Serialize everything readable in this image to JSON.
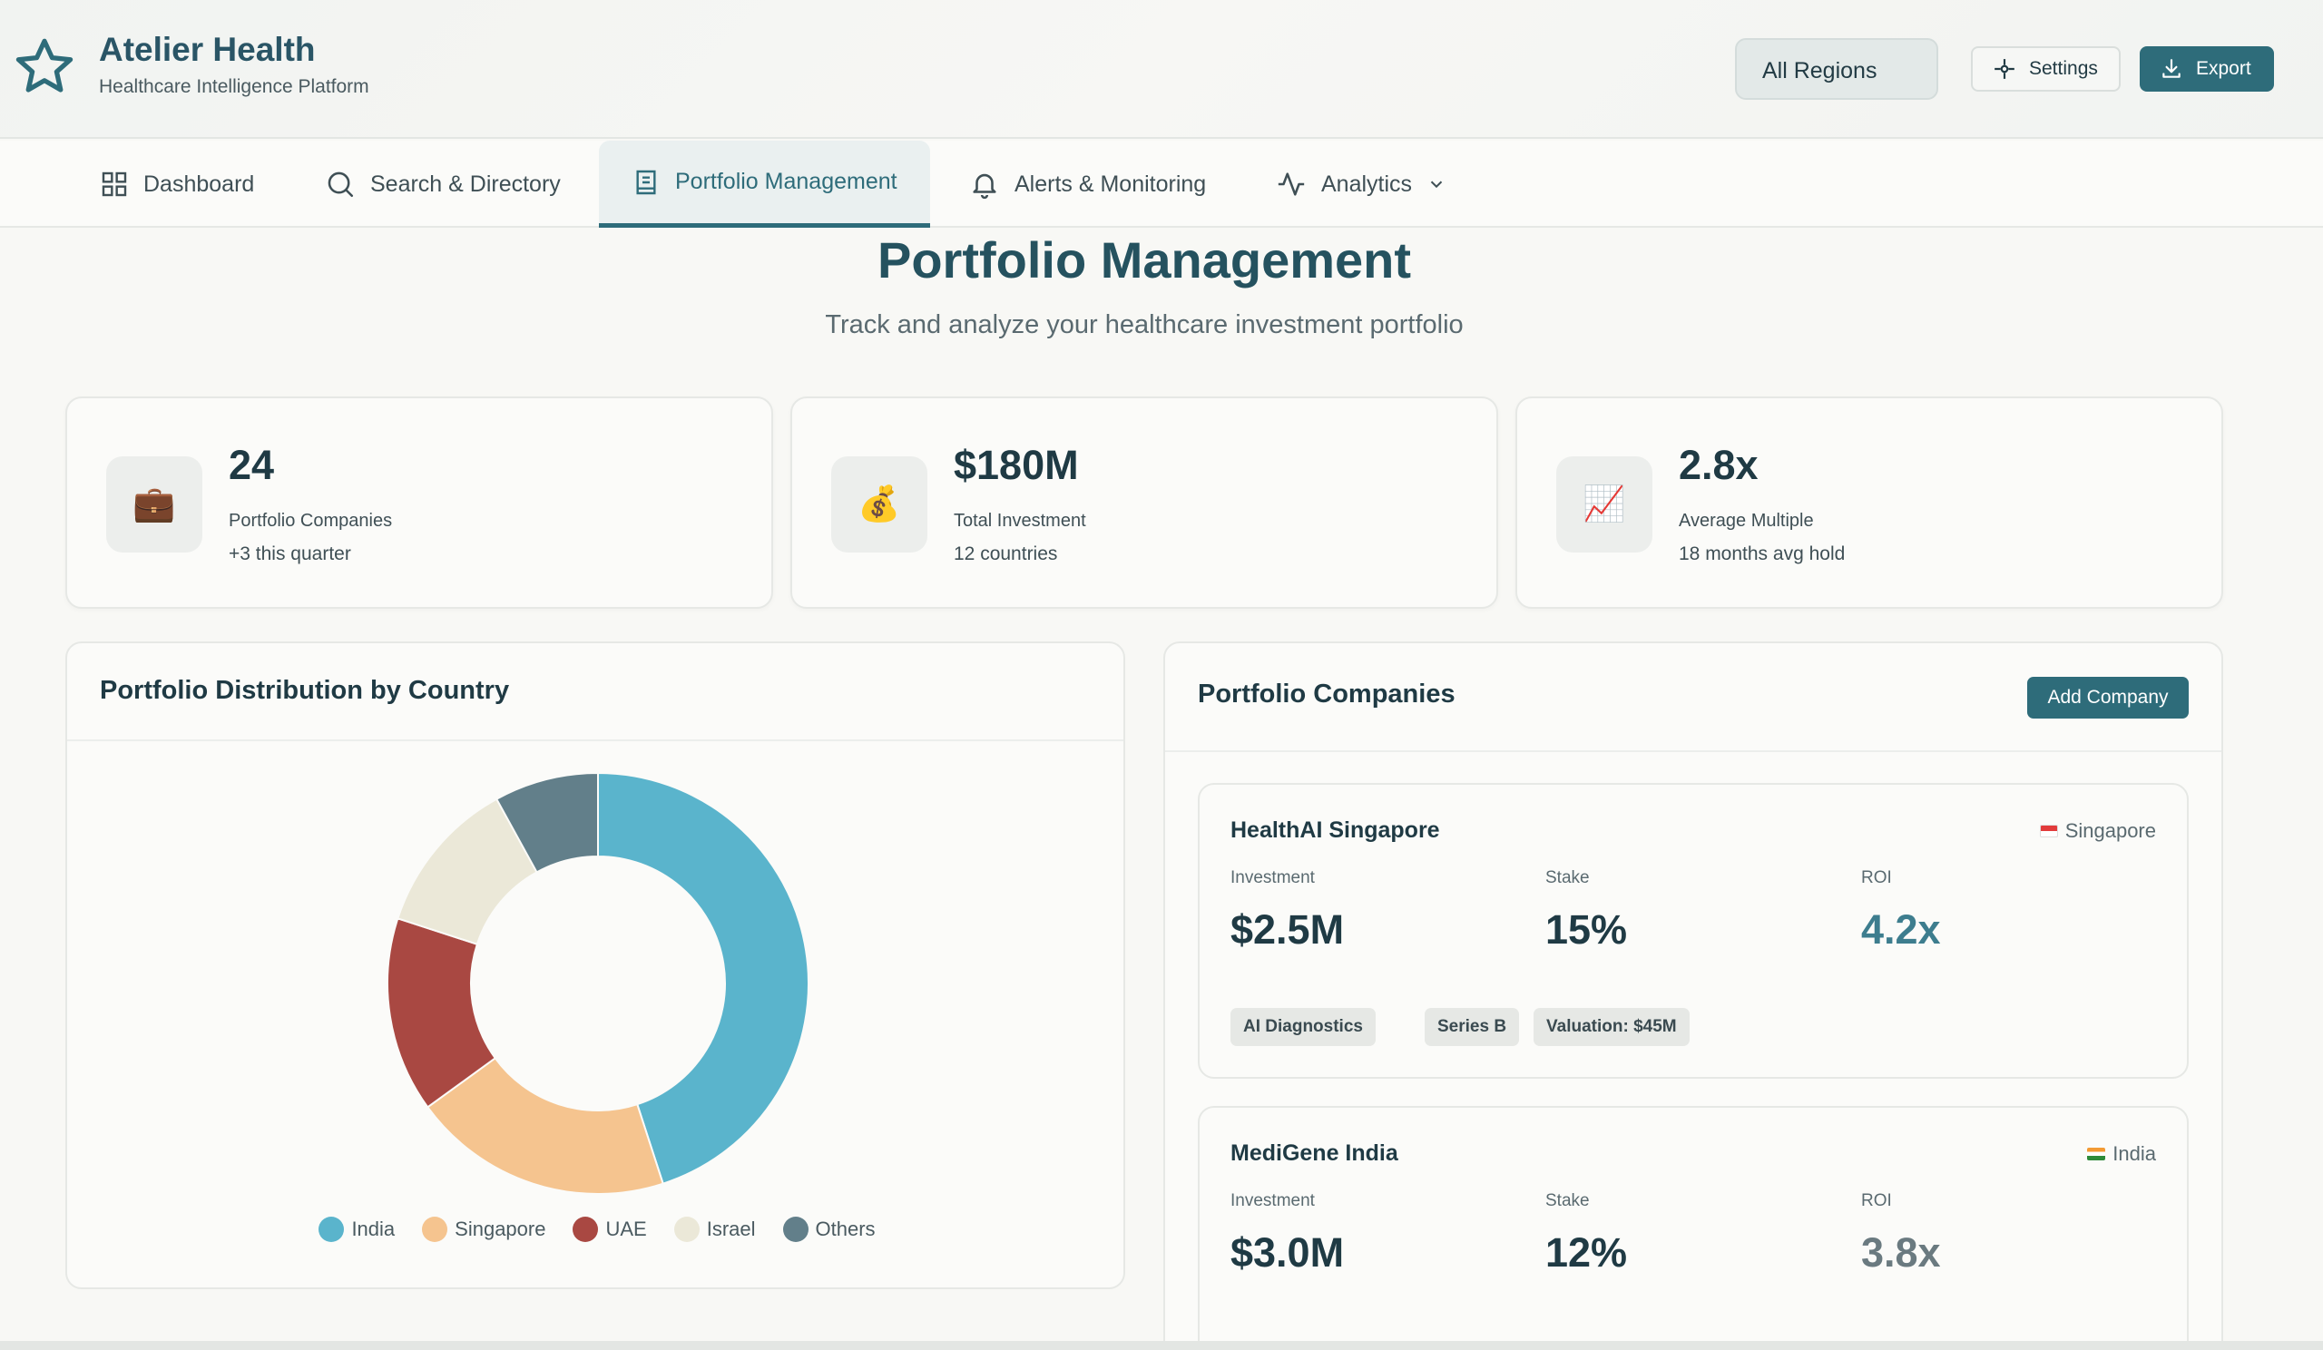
{
  "header": {
    "brand_title": "Atelier Health",
    "brand_subtitle": "Healthcare Intelligence Platform",
    "region_select": "All Regions",
    "settings_label": "Settings",
    "export_label": "Export"
  },
  "nav": {
    "items": [
      {
        "label": "Dashboard",
        "icon": "grid-icon"
      },
      {
        "label": "Search & Directory",
        "icon": "search-icon"
      },
      {
        "label": "Portfolio Management",
        "icon": "document-icon",
        "active": true
      },
      {
        "label": "Alerts & Monitoring",
        "icon": "bell-icon"
      },
      {
        "label": "Analytics",
        "icon": "activity-icon"
      }
    ]
  },
  "page": {
    "title": "Portfolio Management",
    "subtitle": "Track and analyze your healthcare investment portfolio"
  },
  "stats": [
    {
      "icon": "briefcase-icon",
      "glyph": "💼",
      "value": "24",
      "label": "Portfolio Companies",
      "change": "+3 this quarter"
    },
    {
      "icon": "money-bag-icon",
      "glyph": "💰",
      "value": "$180M",
      "label": "Total Investment",
      "change": "12 countries"
    },
    {
      "icon": "chart-up-icon",
      "glyph": "📈",
      "value": "2.8x",
      "label": "Average Multiple",
      "change": "18 months avg hold"
    }
  ],
  "chart": {
    "title": "Portfolio Distribution by Country"
  },
  "chart_data": {
    "type": "pie",
    "donut": true,
    "categories": [
      "India",
      "Singapore",
      "UAE",
      "Israel",
      "Others"
    ],
    "values": [
      45,
      20,
      15,
      12,
      8
    ],
    "colors": [
      "#5ab4cc",
      "#f5c48f",
      "#a94842",
      "#ebe8d8",
      "#627f8a"
    ],
    "legend_position": "bottom"
  },
  "companies": {
    "title": "Portfolio Companies",
    "add_label": "Add Company",
    "list": [
      {
        "name": "HealthAI Singapore",
        "country": "Singapore",
        "investment_label": "Investment",
        "investment": "$2.5M",
        "stake_label": "Stake",
        "stake": "15%",
        "roi_label": "ROI",
        "roi": "4.2x",
        "tags": [
          "AI Diagnostics",
          "Series B",
          "Valuation: $45M"
        ]
      },
      {
        "name": "MediGene India",
        "country": "India",
        "investment_label": "Investment",
        "investment": "$3.0M",
        "stake_label": "Stake",
        "stake": "12%",
        "roi_label": "ROI",
        "roi": "3.8x"
      }
    ]
  }
}
